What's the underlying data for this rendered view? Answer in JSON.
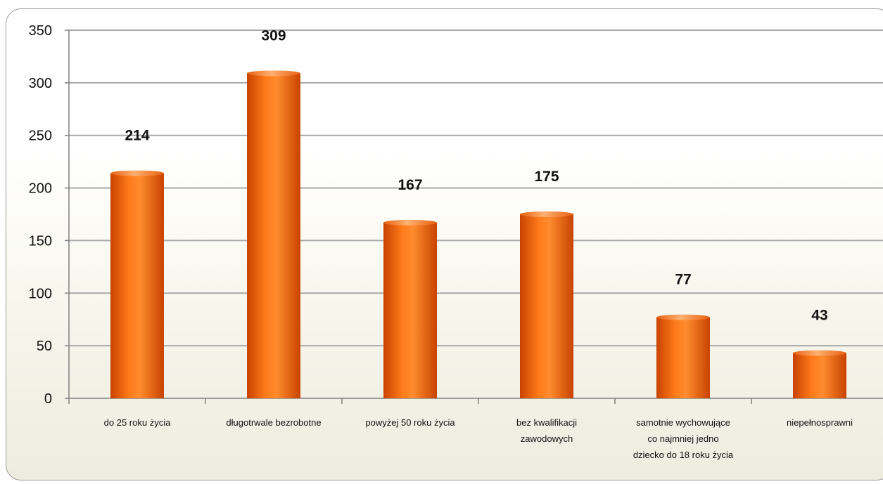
{
  "chart_data": {
    "type": "bar",
    "title": "",
    "xlabel": "",
    "ylabel": "",
    "ylim": [
      0,
      350
    ],
    "yticks": [
      0,
      50,
      100,
      150,
      200,
      250,
      300,
      350
    ],
    "grid": true,
    "legend": "none",
    "categories": [
      [
        "do 25 roku życia"
      ],
      [
        "długotrwale bezrobotne"
      ],
      [
        "powyżej 50 roku życia"
      ],
      [
        "bez kwalifikacji",
        "zawodowych"
      ],
      [
        "samotnie wychowujące",
        "co najmniej jedno",
        "dziecko do 18 roku życia"
      ],
      [
        "niepełnosprawni"
      ]
    ],
    "values": [
      214,
      309,
      167,
      175,
      77,
      43
    ],
    "data_labels": [
      "214",
      "309",
      "167",
      "175",
      "77",
      "43"
    ],
    "colors": {
      "bar_dark": "#c84300",
      "bar_mid": "#ff7a1a",
      "bar_light": "#ffb070",
      "gridline": "#a8a8a8",
      "axis": "#808080"
    }
  }
}
